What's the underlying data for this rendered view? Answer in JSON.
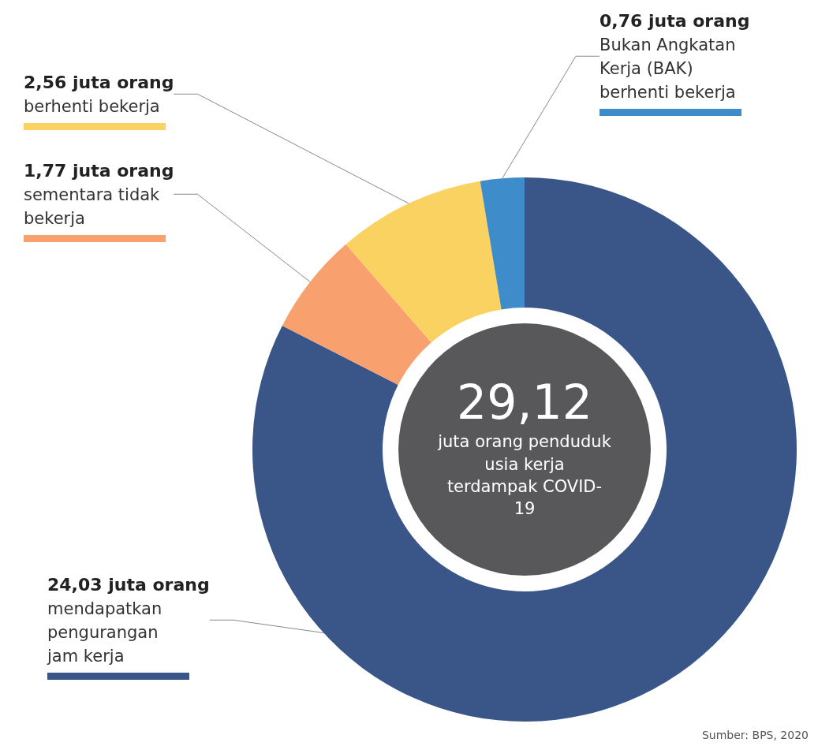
{
  "chart_data": {
    "type": "donut",
    "title": "29,12",
    "subtitle": "juta orang penduduk usia kerja terdampak COVID-19",
    "categories": [
      "mendapatkan pengurangan jam kerja",
      "sementara tidak bekerja",
      "berhenti bekerja",
      "Bukan Angkatan Kerja (BAK) berhenti bekerja"
    ],
    "values": [
      24.03,
      1.77,
      2.56,
      0.76
    ],
    "colors": [
      "#3a5689",
      "#f8a06e",
      "#f9d262",
      "#3f8ccb"
    ],
    "value_labels": [
      "24,03 juta orang",
      "1,77 juta orang",
      "2,56 juta orang",
      "0,76 juta orang"
    ],
    "legend": false,
    "annotations": [
      "Sumber: BPS, 2020"
    ]
  }
}
